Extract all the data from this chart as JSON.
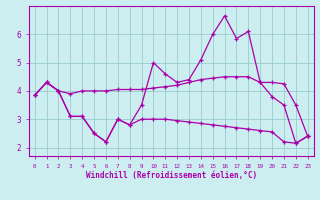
{
  "xlabel": "Windchill (Refroidissement éolien,°C)",
  "bg_color": "#cceef0",
  "line_color": "#aa00aa",
  "grid_color": "#99cccc",
  "x": [
    0,
    1,
    2,
    3,
    4,
    5,
    6,
    7,
    8,
    9,
    10,
    11,
    12,
    13,
    14,
    15,
    16,
    17,
    18,
    19,
    20,
    21,
    22,
    23
  ],
  "line_top": [
    3.85,
    4.3,
    4.0,
    3.9,
    4.0,
    4.0,
    4.0,
    4.05,
    4.05,
    4.05,
    4.1,
    4.15,
    4.2,
    4.3,
    4.4,
    4.45,
    4.5,
    4.5,
    4.5,
    4.3,
    4.3,
    4.25,
    3.5,
    2.4
  ],
  "line_mid": [
    3.85,
    4.3,
    4.0,
    3.1,
    3.1,
    2.5,
    2.2,
    3.0,
    2.8,
    3.5,
    5.0,
    4.6,
    4.3,
    4.4,
    5.1,
    6.0,
    6.65,
    5.85,
    6.1,
    4.3,
    3.8,
    3.5,
    2.15,
    2.4
  ],
  "line_bot": [
    3.85,
    4.3,
    4.0,
    3.1,
    3.1,
    2.5,
    2.2,
    3.0,
    2.8,
    3.0,
    3.0,
    3.0,
    2.95,
    2.9,
    2.85,
    2.8,
    2.75,
    2.7,
    2.65,
    2.6,
    2.55,
    2.2,
    2.15,
    2.4
  ],
  "ylim": [
    1.7,
    7.0
  ],
  "yticks": [
    2,
    3,
    4,
    5,
    6
  ],
  "xlim": [
    -0.5,
    23.5
  ],
  "xticks": [
    0,
    1,
    2,
    3,
    4,
    5,
    6,
    7,
    8,
    9,
    10,
    11,
    12,
    13,
    14,
    15,
    16,
    17,
    18,
    19,
    20,
    21,
    22,
    23
  ]
}
